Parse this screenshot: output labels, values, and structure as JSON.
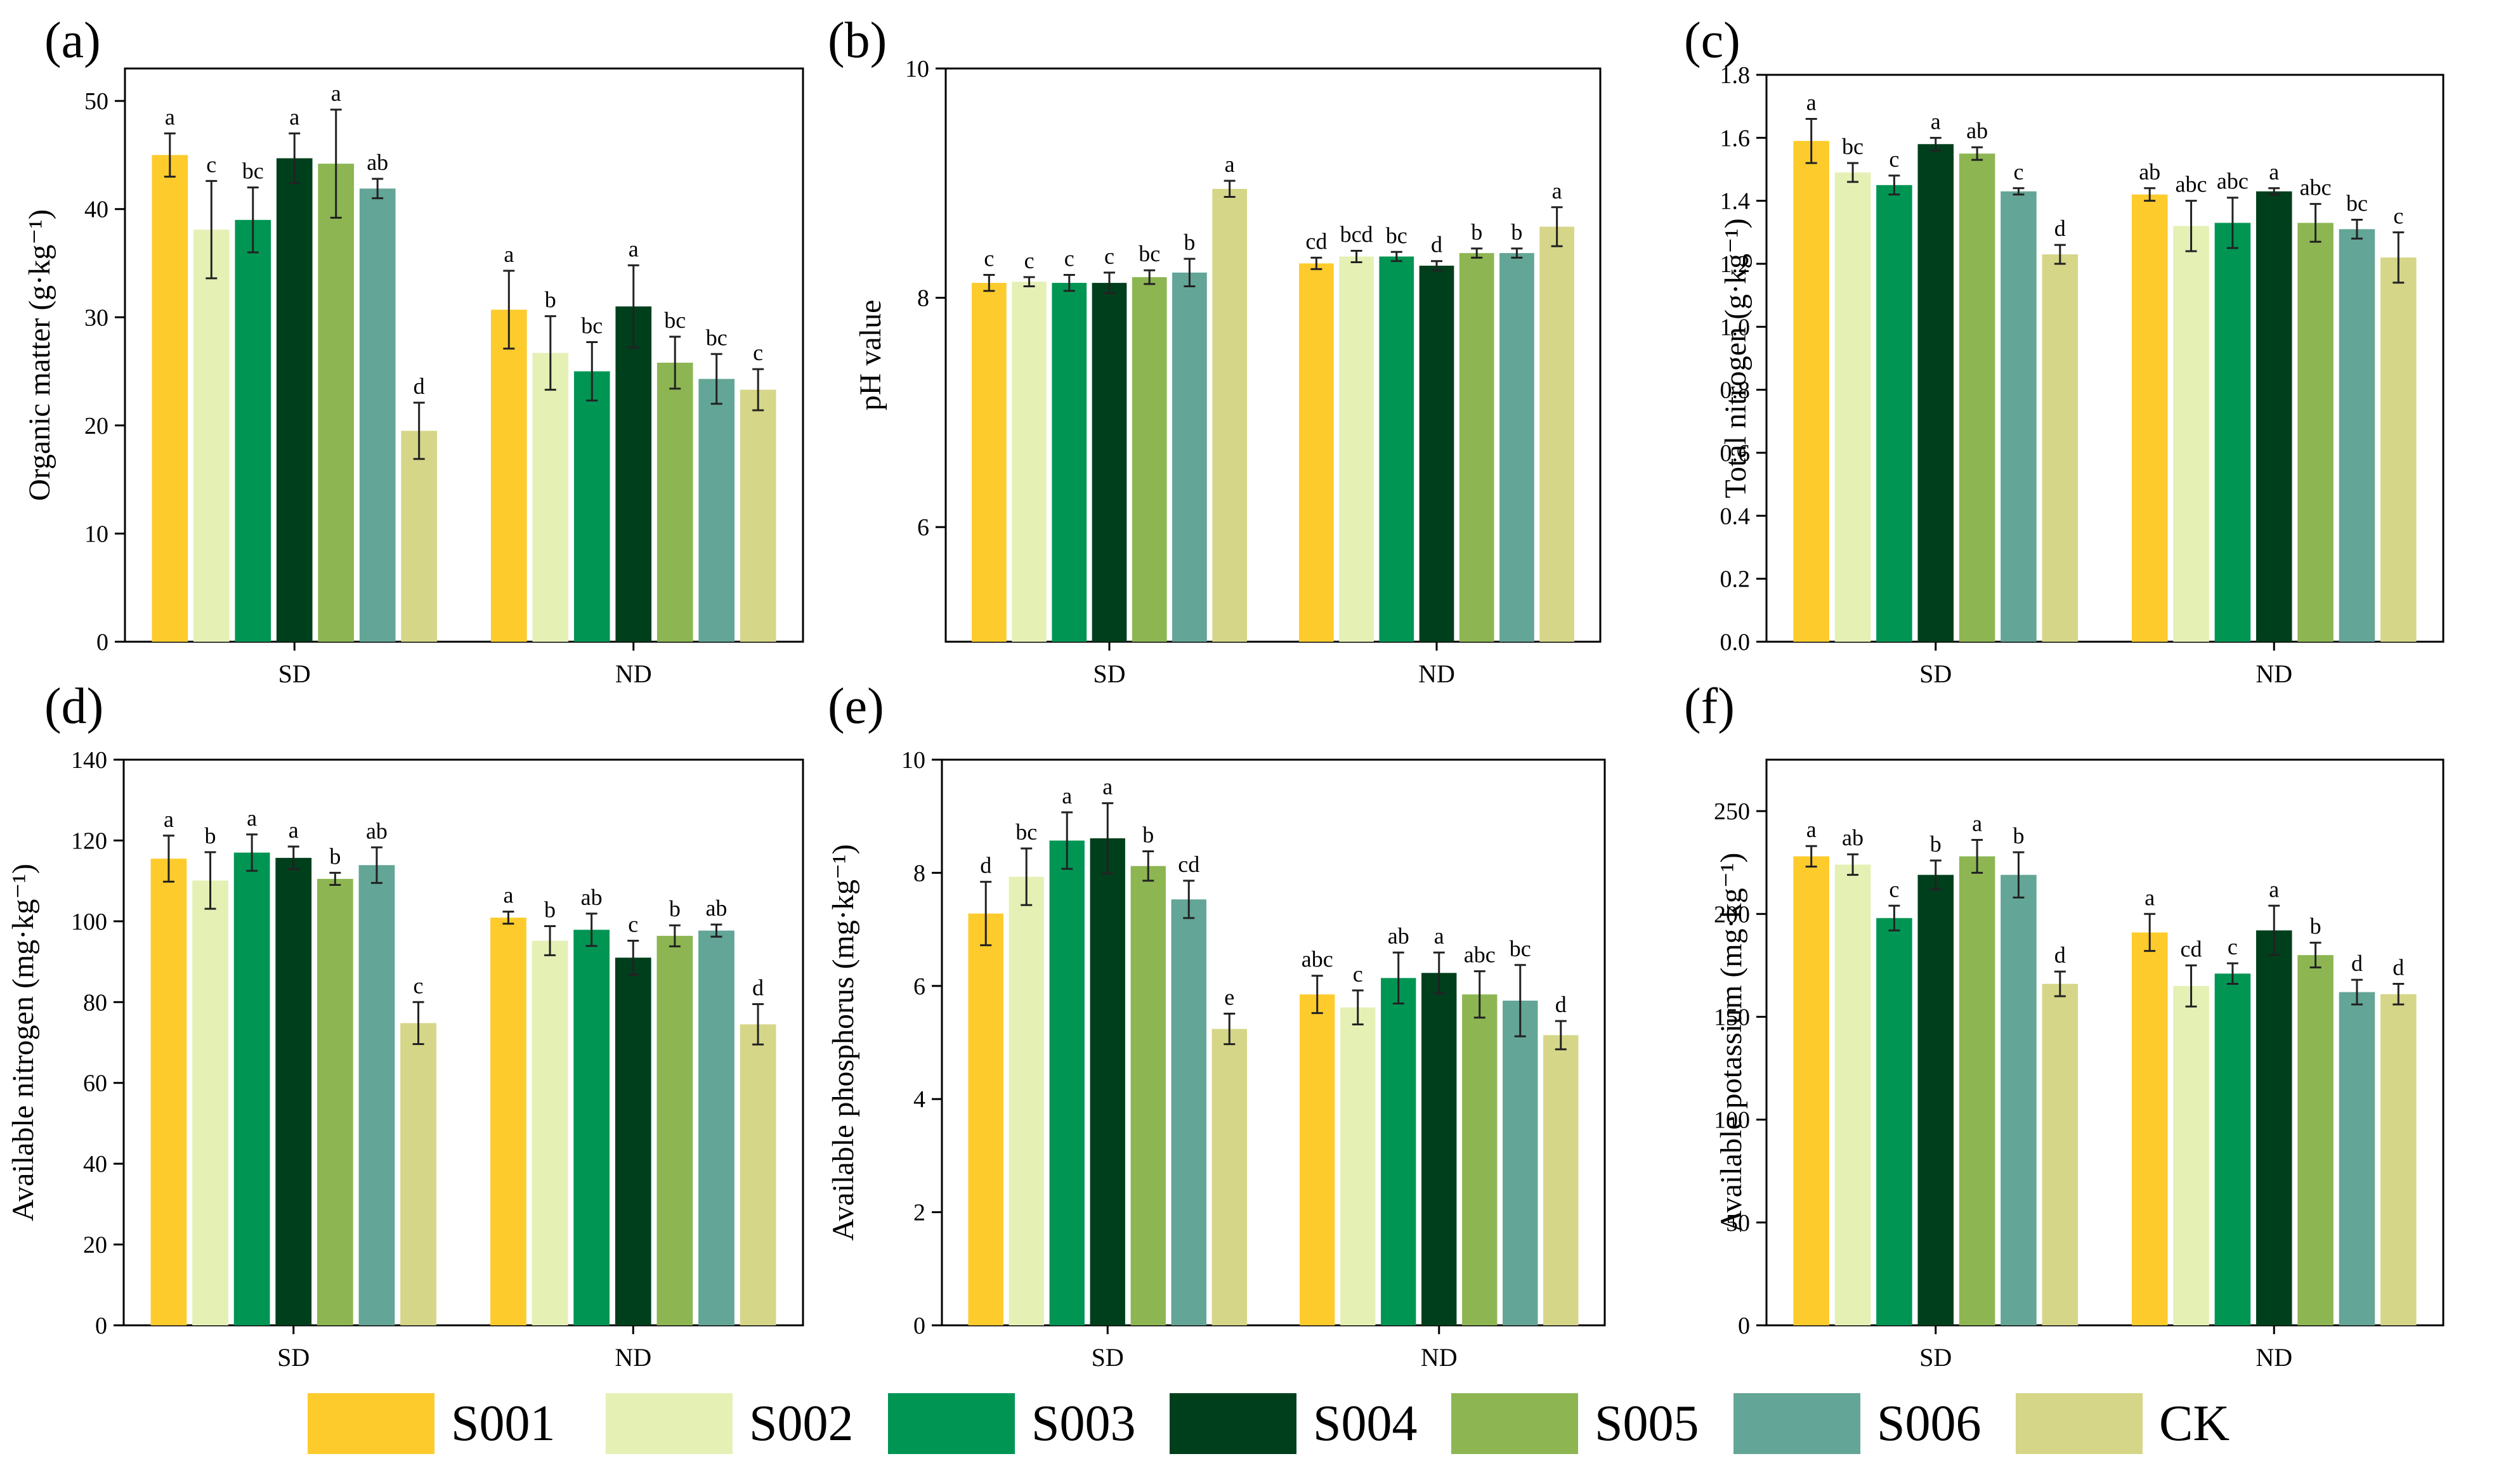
{
  "colors": {
    "S001": "#FDCB2C",
    "S002": "#E5F0B5",
    "S003": "#019554",
    "S004": "#003F1C",
    "S005": "#8DB653",
    "S006": "#63A596",
    "CK": "#D5D688"
  },
  "legend": [
    "S001",
    "S002",
    "S003",
    "S004",
    "S005",
    "S006",
    "CK"
  ],
  "chart_data": [
    {
      "type": "bar",
      "panel": "(a)",
      "title": "",
      "ylabel": "Organic matter (g·kg⁻¹)",
      "xlabel": "",
      "ylim": [
        0,
        53
      ],
      "yticks": [
        0,
        10,
        20,
        30,
        40,
        50
      ],
      "categories": [
        "SD",
        "ND"
      ],
      "series": [
        {
          "name": "S001",
          "values": [
            45.0,
            30.7
          ],
          "errors": [
            2.0,
            3.6
          ],
          "letters": [
            "a",
            "a"
          ]
        },
        {
          "name": "S002",
          "values": [
            38.1,
            26.7
          ],
          "errors": [
            4.5,
            3.4
          ],
          "letters": [
            "c",
            "b"
          ]
        },
        {
          "name": "S003",
          "values": [
            39.0,
            25.0
          ],
          "errors": [
            3.0,
            2.7
          ],
          "letters": [
            "bc",
            "bc"
          ]
        },
        {
          "name": "S004",
          "values": [
            44.7,
            31.0
          ],
          "errors": [
            2.3,
            3.8
          ],
          "letters": [
            "a",
            "a"
          ]
        },
        {
          "name": "S005",
          "values": [
            44.2,
            25.8
          ],
          "errors": [
            5.0,
            2.4
          ],
          "letters": [
            "a",
            "bc"
          ]
        },
        {
          "name": "S006",
          "values": [
            41.9,
            24.3
          ],
          "errors": [
            0.9,
            2.3
          ],
          "letters": [
            "ab",
            "bc"
          ]
        },
        {
          "name": "CK",
          "values": [
            19.5,
            23.3
          ],
          "errors": [
            2.6,
            1.9
          ],
          "letters": [
            "d",
            "c"
          ]
        }
      ]
    },
    {
      "type": "bar",
      "panel": "(b)",
      "title": "",
      "ylabel": "pH value",
      "xlabel": "",
      "ylim": [
        5,
        10
      ],
      "yticks": [
        6,
        8,
        10
      ],
      "categories": [
        "SD",
        "ND"
      ],
      "series": [
        {
          "name": "S001",
          "values": [
            8.13,
            8.3
          ],
          "errors": [
            0.07,
            0.05
          ],
          "letters": [
            "c",
            "cd"
          ]
        },
        {
          "name": "S002",
          "values": [
            8.14,
            8.36
          ],
          "errors": [
            0.04,
            0.05
          ],
          "letters": [
            "c",
            "bcd"
          ]
        },
        {
          "name": "S003",
          "values": [
            8.13,
            8.36
          ],
          "errors": [
            0.07,
            0.04
          ],
          "letters": [
            "c",
            "bc"
          ]
        },
        {
          "name": "S004",
          "values": [
            8.13,
            8.28
          ],
          "errors": [
            0.09,
            0.04
          ],
          "letters": [
            "c",
            "d"
          ]
        },
        {
          "name": "S005",
          "values": [
            8.18,
            8.39
          ],
          "errors": [
            0.06,
            0.04
          ],
          "letters": [
            "bc",
            "b"
          ]
        },
        {
          "name": "S006",
          "values": [
            8.22,
            8.39
          ],
          "errors": [
            0.12,
            0.04
          ],
          "letters": [
            "b",
            "b"
          ]
        },
        {
          "name": "CK",
          "values": [
            8.95,
            8.62
          ],
          "errors": [
            0.07,
            0.17
          ],
          "letters": [
            "a",
            "a"
          ]
        }
      ]
    },
    {
      "type": "bar",
      "panel": "(c)",
      "title": "",
      "ylabel": "Total nitrogen (g·kg⁻¹)",
      "xlabel": "",
      "ylim": [
        0,
        1.8
      ],
      "yticks": [
        0.0,
        0.2,
        0.4,
        0.6,
        0.8,
        1.0,
        1.2,
        1.4,
        1.6,
        1.8
      ],
      "categories": [
        "SD",
        "ND"
      ],
      "series": [
        {
          "name": "S001",
          "values": [
            1.59,
            1.42
          ],
          "errors": [
            0.07,
            0.02
          ],
          "letters": [
            "a",
            "ab"
          ]
        },
        {
          "name": "S002",
          "values": [
            1.49,
            1.32
          ],
          "errors": [
            0.03,
            0.08
          ],
          "letters": [
            "bc",
            "abc"
          ]
        },
        {
          "name": "S003",
          "values": [
            1.45,
            1.33
          ],
          "errors": [
            0.03,
            0.08
          ],
          "letters": [
            "c",
            "abc"
          ]
        },
        {
          "name": "S004",
          "values": [
            1.58,
            1.43
          ],
          "errors": [
            0.02,
            0.01
          ],
          "letters": [
            "a",
            "a"
          ]
        },
        {
          "name": "S005",
          "values": [
            1.55,
            1.33
          ],
          "errors": [
            0.02,
            0.06
          ],
          "letters": [
            "ab",
            "abc"
          ]
        },
        {
          "name": "S006",
          "values": [
            1.43,
            1.31
          ],
          "errors": [
            0.01,
            0.03
          ],
          "letters": [
            "c",
            "bc"
          ]
        },
        {
          "name": "CK",
          "values": [
            1.23,
            1.22
          ],
          "errors": [
            0.03,
            0.08
          ],
          "letters": [
            "d",
            "c"
          ]
        }
      ]
    },
    {
      "type": "bar",
      "panel": "(d)",
      "title": "",
      "ylabel": "Available nitrogen (mg·kg⁻¹)",
      "xlabel": "",
      "ylim": [
        0,
        140
      ],
      "yticks": [
        0,
        20,
        40,
        60,
        80,
        100,
        120,
        140
      ],
      "categories": [
        "SD",
        "ND"
      ],
      "series": [
        {
          "name": "S001",
          "values": [
            115.5,
            100.9
          ],
          "errors": [
            5.7,
            1.5
          ],
          "letters": [
            "a",
            "a"
          ]
        },
        {
          "name": "S002",
          "values": [
            110.1,
            95.2
          ],
          "errors": [
            7.0,
            3.6
          ],
          "letters": [
            "b",
            "b"
          ]
        },
        {
          "name": "S003",
          "values": [
            117.0,
            97.9
          ],
          "errors": [
            4.5,
            4.0
          ],
          "letters": [
            "a",
            "ab"
          ]
        },
        {
          "name": "S004",
          "values": [
            115.7,
            91.0
          ],
          "errors": [
            2.8,
            4.2
          ],
          "letters": [
            "a",
            "c"
          ]
        },
        {
          "name": "S005",
          "values": [
            110.5,
            96.4
          ],
          "errors": [
            1.5,
            2.6
          ],
          "letters": [
            "b",
            "b"
          ]
        },
        {
          "name": "S006",
          "values": [
            113.9,
            97.7
          ],
          "errors": [
            4.4,
            1.5
          ],
          "letters": [
            "ab",
            "ab"
          ]
        },
        {
          "name": "CK",
          "values": [
            74.8,
            74.5
          ],
          "errors": [
            5.2,
            5.0
          ],
          "letters": [
            "c",
            "d"
          ]
        }
      ]
    },
    {
      "type": "bar",
      "panel": "(e)",
      "title": "",
      "ylabel": "Available phosphorus (mg·kg⁻¹)",
      "xlabel": "",
      "ylim": [
        0,
        10
      ],
      "yticks": [
        0,
        2,
        4,
        6,
        8,
        10
      ],
      "categories": [
        "SD",
        "ND"
      ],
      "series": [
        {
          "name": "S001",
          "values": [
            7.28,
            5.85
          ],
          "errors": [
            0.56,
            0.33
          ],
          "letters": [
            "d",
            "abc"
          ]
        },
        {
          "name": "S002",
          "values": [
            7.93,
            5.62
          ],
          "errors": [
            0.5,
            0.3
          ],
          "letters": [
            "bc",
            "c"
          ]
        },
        {
          "name": "S003",
          "values": [
            8.57,
            6.14
          ],
          "errors": [
            0.5,
            0.45
          ],
          "letters": [
            "a",
            "ab"
          ]
        },
        {
          "name": "S004",
          "values": [
            8.61,
            6.23
          ],
          "errors": [
            0.62,
            0.36
          ],
          "letters": [
            "a",
            "a"
          ]
        },
        {
          "name": "S005",
          "values": [
            8.12,
            5.85
          ],
          "errors": [
            0.26,
            0.41
          ],
          "letters": [
            "b",
            "abc"
          ]
        },
        {
          "name": "S006",
          "values": [
            7.53,
            5.74
          ],
          "errors": [
            0.33,
            0.63
          ],
          "letters": [
            "cd",
            "bc"
          ]
        },
        {
          "name": "CK",
          "values": [
            5.24,
            5.13
          ],
          "errors": [
            0.27,
            0.25
          ],
          "letters": [
            "e",
            "d"
          ]
        }
      ]
    },
    {
      "type": "bar",
      "panel": "(f)",
      "title": "",
      "ylabel": "Available potassium (mg·kg⁻¹)",
      "xlabel": "",
      "ylim": [
        0,
        275
      ],
      "yticks": [
        0,
        50,
        100,
        150,
        200,
        250
      ],
      "categories": [
        "SD",
        "ND"
      ],
      "series": [
        {
          "name": "S001",
          "values": [
            228,
            191
          ],
          "errors": [
            5,
            9
          ],
          "letters": [
            "a",
            "a"
          ]
        },
        {
          "name": "S002",
          "values": [
            224,
            165
          ],
          "errors": [
            5,
            10
          ],
          "letters": [
            "ab",
            "cd"
          ]
        },
        {
          "name": "S003",
          "values": [
            198,
            171
          ],
          "errors": [
            6,
            5
          ],
          "letters": [
            "c",
            "c"
          ]
        },
        {
          "name": "S004",
          "values": [
            219,
            192
          ],
          "errors": [
            7,
            12
          ],
          "letters": [
            "b",
            "a"
          ]
        },
        {
          "name": "S005",
          "values": [
            228,
            180
          ],
          "errors": [
            8,
            6
          ],
          "letters": [
            "a",
            "b"
          ]
        },
        {
          "name": "S006",
          "values": [
            219,
            162
          ],
          "errors": [
            11,
            6
          ],
          "letters": [
            "b",
            "d"
          ]
        },
        {
          "name": "CK",
          "values": [
            166,
            161
          ],
          "errors": [
            6,
            5
          ],
          "letters": [
            "d",
            "d"
          ]
        }
      ]
    }
  ]
}
